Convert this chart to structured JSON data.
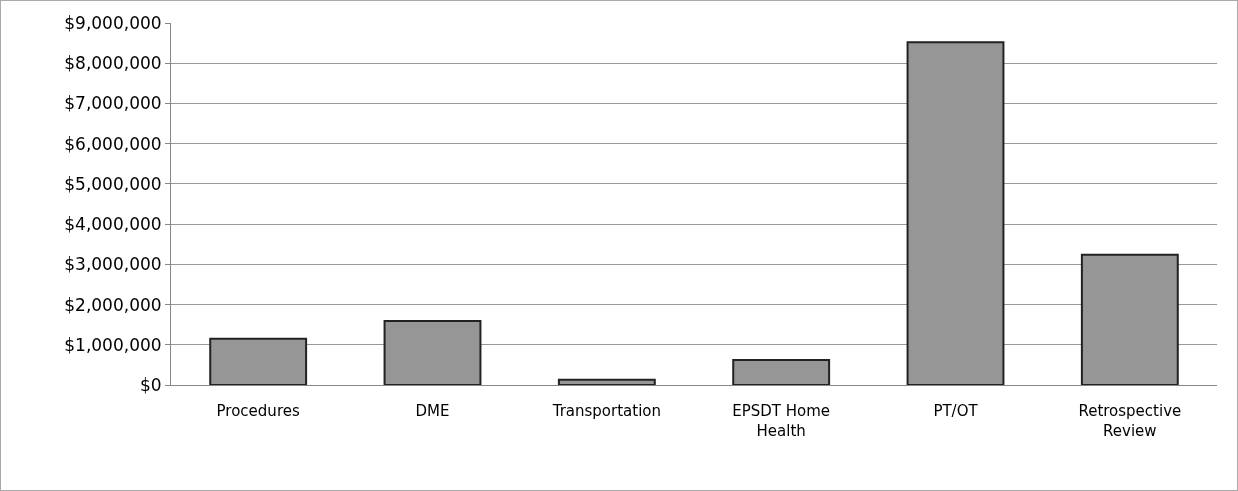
{
  "chart_data": {
    "type": "bar",
    "categories": [
      "Procedures",
      "DME",
      "Transportation",
      "EPSDT Home Health",
      "PT/OT",
      "Retrospective Review"
    ],
    "values": [
      1150000,
      1590000,
      130000,
      620000,
      8520000,
      3240000
    ],
    "color": "#969696",
    "ylim": [
      0,
      9000000
    ],
    "yticks": [
      {
        "value": 0,
        "label": "$0"
      },
      {
        "value": 1000000,
        "label": "$1,000,000"
      },
      {
        "value": 2000000,
        "label": "$2,000,000"
      },
      {
        "value": 3000000,
        "label": "$3,000,000"
      },
      {
        "value": 4000000,
        "label": "$4,000,000"
      },
      {
        "value": 5000000,
        "label": "$5,000,000"
      },
      {
        "value": 6000000,
        "label": "$6,000,000"
      },
      {
        "value": 7000000,
        "label": "$7,000,000"
      },
      {
        "value": 8000000,
        "label": "$8,000,000"
      },
      {
        "value": 9000000,
        "label": "$9,000,000"
      }
    ],
    "grid": "y"
  }
}
